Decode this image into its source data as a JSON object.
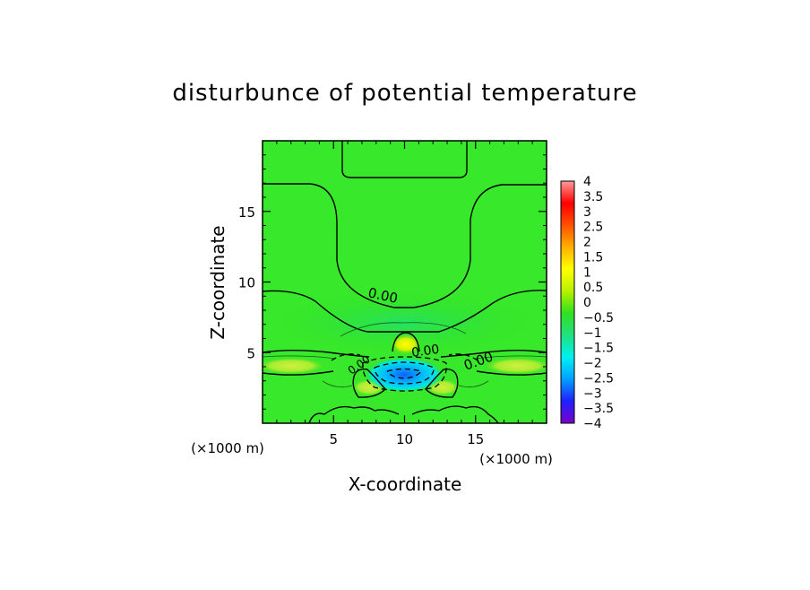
{
  "chart_data": {
    "type": "heatmap",
    "title": "disturbunce of potential temperature",
    "xlabel": "X-coordinate",
    "ylabel": "Z-coordinate",
    "x_unit": "(×1000 m)",
    "y_unit": "(×1000 m)",
    "xlim": [
      0,
      20
    ],
    "ylim": [
      0,
      20
    ],
    "x_ticks": [
      "5",
      "10",
      "15"
    ],
    "y_ticks": [
      "5",
      "10",
      "15"
    ],
    "contour_label": "0.00",
    "colorbar": {
      "min": -4,
      "max": 4,
      "tick_labels": [
        "4",
        "3.5",
        "3",
        "2.5",
        "2",
        "1.5",
        "1",
        "0.5",
        "0",
        "−0.5",
        "−1",
        "−1.5",
        "−2",
        "−2.5",
        "−3",
        "−3.5",
        "−4"
      ],
      "colors": [
        "#7a00c8",
        "#2020ff",
        "#00a0ff",
        "#00f0f0",
        "#20e080",
        "#30e020",
        "#b8f000",
        "#ffff00",
        "#ffb000",
        "#ff5000",
        "#ff0000",
        "#ff9a9a"
      ]
    },
    "features": [
      {
        "kind": "background",
        "value": 0.2
      },
      {
        "kind": "warm_core",
        "x": 10,
        "z": 5.5,
        "value": 1.5
      },
      {
        "kind": "cold_core",
        "x": 10,
        "z": 3.6,
        "value": -2.0
      },
      {
        "kind": "warm_band_left",
        "x": 2,
        "z": 4.2,
        "value": 1.2
      },
      {
        "kind": "warm_band_right",
        "x": 18,
        "z": 4.2,
        "value": 1.2
      },
      {
        "kind": "warm_lobe_left",
        "x": 7.5,
        "z": 2.6,
        "value": 1.0
      },
      {
        "kind": "warm_lobe_right",
        "x": 12.5,
        "z": 2.6,
        "value": 1.0
      }
    ]
  }
}
